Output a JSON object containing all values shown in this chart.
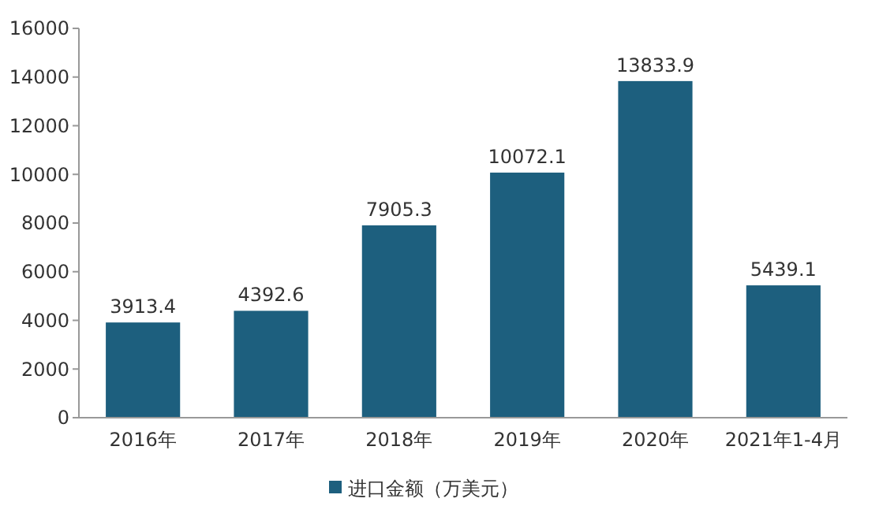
{
  "chart_data": {
    "type": "bar",
    "categories": [
      "2016年",
      "2017年",
      "2018年",
      "2019年",
      "2020年",
      "2021年1-4月"
    ],
    "series": [
      {
        "name": "进口金额（万美元）",
        "color": "#1d5f7e",
        "values": [
          3913.4,
          4392.6,
          7905.3,
          10072.1,
          13833.9,
          5439.1
        ]
      }
    ],
    "ylim": [
      0,
      16000
    ],
    "yticks": [
      0,
      2000,
      4000,
      6000,
      8000,
      10000,
      12000,
      14000,
      16000
    ],
    "data_labels": true,
    "legend": "bottom",
    "grid": false
  }
}
